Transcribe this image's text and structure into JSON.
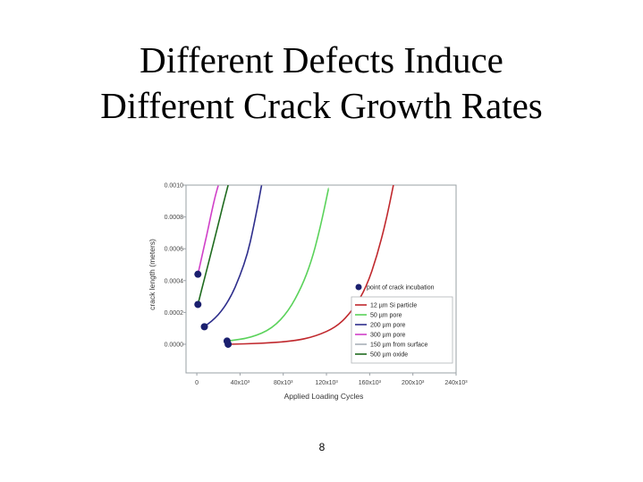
{
  "slide": {
    "title_line1": "Different Defects Induce",
    "title_line2": "Different Crack Growth Rates",
    "page_number": "8"
  },
  "chart_data": {
    "type": "line",
    "title": "",
    "xlabel": "Applied Loading Cycles",
    "ylabel": "crack length (meters)",
    "xlim": [
      -10000,
      240000
    ],
    "ylim": [
      -0.00018,
      0.001
    ],
    "x_ticks": [
      0,
      40000,
      80000,
      120000,
      160000,
      200000,
      240000
    ],
    "x_tick_labels": [
      "0",
      "40x10³",
      "80x10³",
      "120x10³",
      "160x10³",
      "200x10³",
      "240x10³"
    ],
    "y_ticks": [
      0,
      0.0002,
      0.0004,
      0.0006,
      0.0008,
      0.001
    ],
    "y_tick_labels": [
      "0.0000",
      "0.0002",
      "0.0004",
      "0.0006",
      "0.0008",
      "0.0010"
    ],
    "grid": false,
    "legend_position": "center-right",
    "incubation_legend": {
      "name": "point of crack incubation",
      "color": "#1a1f6e"
    },
    "series": [
      {
        "name": "12 µm Si particle",
        "color": "#c0282d",
        "points": [
          [
            29000,
            0.0
          ],
          [
            60000,
            5e-06
          ],
          [
            90000,
            2e-05
          ],
          [
            110000,
            5e-05
          ],
          [
            130000,
            0.00011
          ],
          [
            145000,
            0.00022
          ],
          [
            157000,
            0.00036
          ],
          [
            167000,
            0.00056
          ],
          [
            175000,
            0.00077
          ],
          [
            182000,
            0.001
          ]
        ],
        "incubation": [
          29000,
          0.0
        ]
      },
      {
        "name": "50 µm pore",
        "color": "#5ad25a",
        "points": [
          [
            28000,
            2e-05
          ],
          [
            50000,
            4e-05
          ],
          [
            70000,
            0.0001
          ],
          [
            85000,
            0.00021
          ],
          [
            97000,
            0.00036
          ],
          [
            106000,
            0.00052
          ],
          [
            113000,
            0.0007
          ],
          [
            118000,
            0.00085
          ],
          [
            122000,
            0.00098
          ]
        ],
        "incubation": [
          28000,
          2e-05
        ]
      },
      {
        "name": "200 µm pore",
        "color": "#2e2e8c",
        "points": [
          [
            7000,
            0.00011
          ],
          [
            20000,
            0.00018
          ],
          [
            31000,
            0.00029
          ],
          [
            40000,
            0.00043
          ],
          [
            47000,
            0.00057
          ],
          [
            52000,
            0.00072
          ],
          [
            57000,
            0.00089
          ],
          [
            60000,
            0.001
          ]
        ],
        "incubation": [
          7000,
          0.00011
        ]
      },
      {
        "name": "300 µm pore",
        "color": "#d040c8",
        "points": [
          [
            1000,
            0.00044
          ],
          [
            5000,
            0.00056
          ],
          [
            9000,
            0.00068
          ],
          [
            13000,
            0.00081
          ],
          [
            17000,
            0.00093
          ],
          [
            20000,
            0.001
          ]
        ],
        "incubation": [
          1000,
          0.00044
        ]
      },
      {
        "name": "150 µm from surface",
        "color": "#a8b0b8",
        "points": [],
        "incubation": null
      },
      {
        "name": "500 µm oxide",
        "color": "#1f6b1f",
        "points": [
          [
            1000,
            0.00025
          ],
          [
            7000,
            0.00041
          ],
          [
            13000,
            0.00057
          ],
          [
            19000,
            0.00073
          ],
          [
            24000,
            0.00087
          ],
          [
            29000,
            0.001
          ]
        ],
        "incubation": [
          1000,
          0.00025
        ]
      }
    ]
  }
}
